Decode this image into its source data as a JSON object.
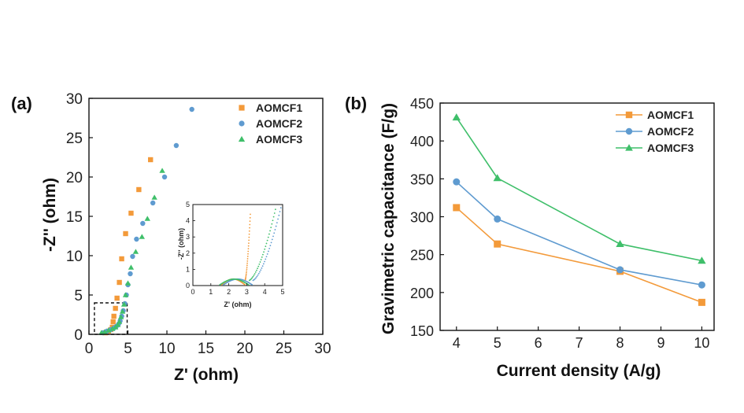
{
  "colors": {
    "AOMCF1": "#f39a3a",
    "AOMCF2": "#5f9bd0",
    "AOMCF3": "#3fbf6a"
  },
  "chart_data": [
    {
      "panel": "(a)",
      "type": "scatter",
      "xlabel": "Z' (ohm)",
      "ylabel": "-Z'' (ohm)",
      "xlim": [
        0,
        30
      ],
      "ylim": [
        0,
        30
      ],
      "xticks": [
        0,
        5,
        10,
        15,
        20,
        25,
        30
      ],
      "yticks": [
        0,
        5,
        10,
        15,
        20,
        25,
        30
      ],
      "legend_position": "top-right",
      "series": [
        {
          "name": "AOMCF1",
          "marker": "square",
          "x": [
            2.1,
            2.5,
            2.8,
            3.0,
            3.1,
            3.2,
            3.4,
            3.6,
            3.9,
            4.2,
            4.7,
            5.4,
            6.4,
            7.9
          ],
          "y": [
            0.2,
            0.4,
            0.6,
            0.9,
            1.6,
            2.3,
            3.3,
            4.6,
            6.6,
            9.6,
            12.8,
            15.4,
            18.4,
            22.2
          ]
        },
        {
          "name": "AOMCF2",
          "marker": "circle",
          "x": [
            1.8,
            2.3,
            2.8,
            3.2,
            3.5,
            3.8,
            4.0,
            4.2,
            4.4,
            4.6,
            4.8,
            5.0,
            5.3,
            5.6,
            6.1,
            6.9,
            8.2,
            9.7,
            11.2,
            13.2
          ],
          "y": [
            0.2,
            0.4,
            0.6,
            0.8,
            1.0,
            1.3,
            1.7,
            2.3,
            3.0,
            3.9,
            5.0,
            6.3,
            7.7,
            9.9,
            12.1,
            14.1,
            16.7,
            20.0,
            24.0,
            28.6
          ]
        },
        {
          "name": "AOMCF3",
          "marker": "triangle",
          "x": [
            1.6,
            2.0,
            2.5,
            3.0,
            3.4,
            3.7,
            3.9,
            4.1,
            4.3,
            4.5,
            4.7,
            5.0,
            5.4,
            6.0,
            6.8,
            7.5,
            8.4,
            9.4
          ],
          "y": [
            0.2,
            0.3,
            0.5,
            0.7,
            0.9,
            1.2,
            1.6,
            2.2,
            2.9,
            3.8,
            5.0,
            6.5,
            8.5,
            10.5,
            12.4,
            14.7,
            17.4,
            20.8
          ]
        }
      ],
      "inset": {
        "xlabel": "Z' (ohm)",
        "ylabel": "-Z'' (ohm)",
        "xlim": [
          0,
          5
        ],
        "ylim": [
          0,
          5
        ],
        "xticks": [
          0,
          1,
          2,
          3,
          4,
          5
        ],
        "yticks": [
          0,
          1,
          2,
          3,
          4,
          5
        ]
      }
    },
    {
      "panel": "(b)",
      "type": "line",
      "xlabel": "Current density (A/g)",
      "ylabel": "Gravimetric capacitance (F/g)",
      "xlim": [
        3.6,
        10.3
      ],
      "ylim": [
        150,
        450
      ],
      "xticks": [
        4,
        5,
        6,
        7,
        8,
        9,
        10
      ],
      "yticks": [
        150,
        200,
        250,
        300,
        350,
        400,
        450
      ],
      "legend_position": "top-right",
      "x": [
        4,
        5,
        8,
        10
      ],
      "series": [
        {
          "name": "AOMCF1",
          "marker": "square",
          "values": [
            312,
            264,
            228,
            187
          ]
        },
        {
          "name": "AOMCF2",
          "marker": "circle",
          "values": [
            346,
            297,
            230,
            210
          ]
        },
        {
          "name": "AOMCF3",
          "marker": "triangle",
          "values": [
            431,
            351,
            264,
            242
          ]
        }
      ]
    }
  ]
}
